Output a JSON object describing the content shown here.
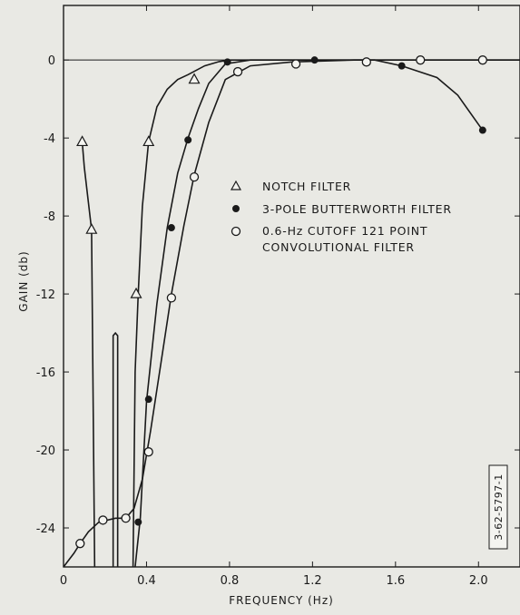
{
  "chart_data": {
    "type": "line",
    "title": "",
    "xlabel": "FREQUENCY (Hz)",
    "ylabel": "GAIN (db)",
    "xlim": [
      0,
      2.2
    ],
    "ylim": [
      -26,
      2.8
    ],
    "x_ticks": [
      0,
      0.4,
      0.8,
      1.2,
      1.6,
      2.0
    ],
    "x_tick_labels": [
      "0",
      "0.4",
      "0.8",
      "1.2",
      "1.6",
      "2.0"
    ],
    "y_ticks": [
      0,
      -4,
      -8,
      -12,
      -16,
      -20,
      -24
    ],
    "y_tick_labels": [
      "0",
      "-4",
      "-8",
      "-12",
      "-16",
      "-20",
      "-24"
    ],
    "grid": false,
    "legend_position": "center-right",
    "reference_label": "3-62-5797-1",
    "series": [
      {
        "name": "NOTCH FILTER",
        "marker": "open-triangle",
        "lines": [
          {
            "x": [
              0.09,
              0.1,
              0.12,
              0.135,
              0.15
            ],
            "y": [
              -4.2,
              -5.5,
              -7.3,
              -8.7,
              -26
            ]
          },
          {
            "x": [
              0.335,
              0.345,
              0.36,
              0.38,
              0.41,
              0.45,
              0.5,
              0.55,
              0.6,
              0.68,
              0.75,
              0.8,
              0.85,
              2.2
            ],
            "y": [
              -26,
              -16,
              -12,
              -7.5,
              -4.2,
              -2.4,
              -1.5,
              -1.0,
              -0.75,
              -0.3,
              -0.08,
              0,
              0,
              0
            ]
          }
        ],
        "points": {
          "x": [
            0.09,
            0.135,
            0.35,
            0.41,
            0.63
          ],
          "y": [
            -4.2,
            -8.7,
            -12,
            -4.2,
            -1.0
          ]
        },
        "spike": {
          "x": 0.25,
          "y_top": -14,
          "y_bottom": -26
        }
      },
      {
        "name": "3-POLE BUTTERWORTH FILTER",
        "marker": "filled-circle",
        "x": [
          0.345,
          0.37,
          0.4,
          0.45,
          0.5,
          0.55,
          0.6,
          0.65,
          0.7,
          0.78,
          0.9,
          1.2,
          1.5,
          1.63,
          1.8,
          1.9,
          2.02
        ],
        "y": [
          -26,
          -23.5,
          -17.5,
          -12.5,
          -8.6,
          -5.8,
          -4.0,
          -2.5,
          -1.2,
          -0.2,
          0,
          0,
          0,
          -0.3,
          -0.9,
          -1.8,
          -3.6
        ],
        "points": {
          "x": [
            0.36,
            0.41,
            0.52,
            0.6,
            0.79,
            1.21,
            1.63,
            2.02
          ],
          "y": [
            -23.7,
            -17.4,
            -8.6,
            -4.1,
            -0.1,
            0,
            -0.3,
            -3.6
          ]
        }
      },
      {
        "name": "0.6-Hz CUTOFF 121 POINT CONVOLUTIONAL FILTER",
        "legend_lines": [
          "0.6-Hz CUTOFF 121 POINT",
          "CONVOLUTIONAL FILTER"
        ],
        "marker": "open-circle",
        "x": [
          0,
          0.05,
          0.08,
          0.12,
          0.17,
          0.25,
          0.3,
          0.34,
          0.38,
          0.42,
          0.47,
          0.52,
          0.58,
          0.63,
          0.7,
          0.78,
          0.9,
          1.1,
          1.4,
          2.2
        ],
        "y": [
          -26,
          -25.3,
          -24.8,
          -24.2,
          -23.7,
          -23.5,
          -23.5,
          -23.0,
          -21.5,
          -19.0,
          -15.5,
          -12.0,
          -8.5,
          -5.9,
          -3.2,
          -1.0,
          -0.3,
          -0.1,
          0,
          0
        ],
        "points": {
          "x": [
            0.08,
            0.19,
            0.3,
            0.41,
            0.52,
            0.63,
            0.84,
            1.12,
            1.46,
            1.72,
            2.02
          ],
          "y": [
            -24.8,
            -23.6,
            -23.5,
            -20.1,
            -12.2,
            -6.0,
            -0.6,
            -0.2,
            -0.1,
            0,
            0
          ]
        }
      }
    ]
  }
}
